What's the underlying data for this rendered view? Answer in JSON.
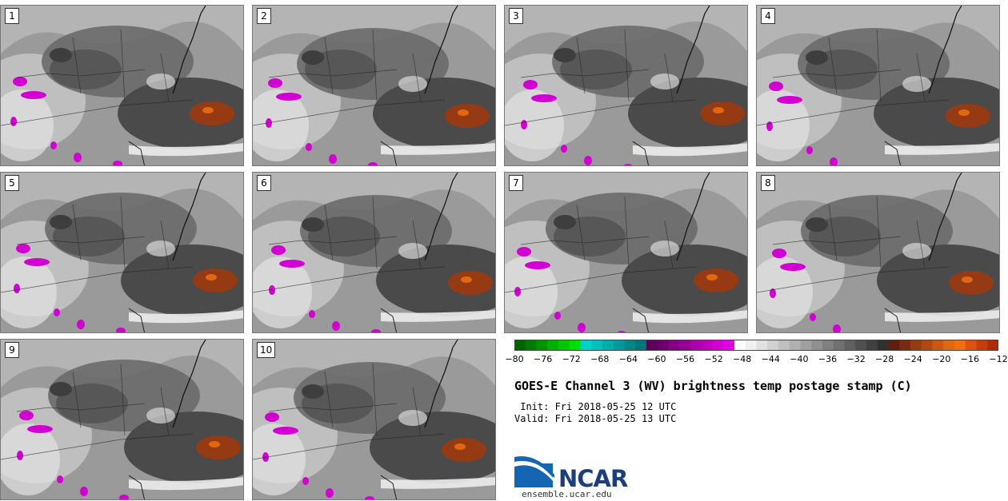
{
  "panels": [
    "1",
    "2",
    "3",
    "4",
    "5",
    "6",
    "7",
    "8",
    "9",
    "10"
  ],
  "colorbar": {
    "ticks": [
      "−80",
      "−76",
      "−72",
      "−68",
      "−64",
      "−60",
      "−56",
      "−52",
      "−48",
      "−44",
      "−40",
      "−36",
      "−32",
      "−28",
      "−24",
      "−20",
      "−16",
      "−12"
    ],
    "colors": [
      "#006400",
      "#007d00",
      "#009600",
      "#00b000",
      "#00c800",
      "#00e000",
      "#00d2c8",
      "#00bfbf",
      "#00acac",
      "#009a9a",
      "#008888",
      "#007676",
      "#5a0059",
      "#6e006d",
      "#820081",
      "#960095",
      "#aa00a9",
      "#be00bd",
      "#d200d1",
      "#e600e5",
      "#ffffff",
      "#f0f0f0",
      "#e0e0e0",
      "#d0d0d0",
      "#c0c0c0",
      "#b0b0b0",
      "#a0a0a0",
      "#909090",
      "#808080",
      "#707070",
      "#606060",
      "#505050",
      "#404040",
      "#303030",
      "#5c1f10",
      "#7a2a12",
      "#963a14",
      "#b04812",
      "#cc5810",
      "#e06810",
      "#f07010",
      "#e05010",
      "#c83c0c",
      "#b02c08"
    ]
  },
  "title": "GOES-E Channel 3 (WV) brightness temp postage stamp (C)",
  "init": " Init: Fri 2018-05-25 12 UTC",
  "valid": "Valid: Fri 2018-05-25 13 UTC",
  "logo_text": "NCAR",
  "site": "ensemble.ucar.edu"
}
